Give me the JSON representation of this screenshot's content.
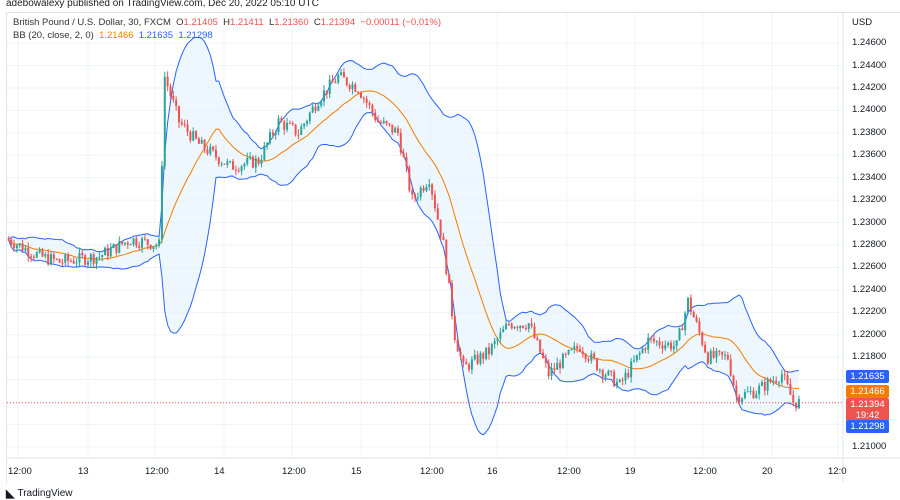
{
  "publisher": "adebowalexy published on TradingView.com, Dec 20, 2022 05:10 UTC",
  "symbol": {
    "name": "British Pound / U.S. Dollar, 30, FXCM",
    "o_label": "O",
    "o": "1.21405",
    "h_label": "H",
    "h": "1.21411",
    "l_label": "L",
    "l": "1.21360",
    "c_label": "C",
    "c": "1.21394",
    "change": "−0.00011 (−0.01%)"
  },
  "indicator": {
    "name": "BB (20, close, 2, 0)",
    "basis": "1.21466",
    "upper": "1.21635",
    "lower": "1.21298"
  },
  "currency": "USD",
  "price_axis": [
    "1.24600",
    "1.24400",
    "1.24200",
    "1.24000",
    "1.23800",
    "1.23600",
    "1.23400",
    "1.23200",
    "1.23000",
    "1.22800",
    "1.22600",
    "1.22400",
    "1.22200",
    "1.22000",
    "1.21800",
    "1.21000"
  ],
  "time_axis": [
    "12:00",
    "13",
    "12:00",
    "14",
    "12:00",
    "15",
    "12:00",
    "16",
    "12:00",
    "19",
    "12:00",
    "20",
    "12:0"
  ],
  "tags": {
    "upper": "1.21635",
    "basis": "1.21466",
    "last": "1.21394",
    "countdown": "19:42",
    "lower": "1.21298"
  },
  "footer": {
    "brand": "TradingView"
  },
  "colors": {
    "up": "#26a69a",
    "down": "#ef5350",
    "basis": "#f57c00",
    "band": "#2962ff",
    "fill": "#e3f2fd"
  },
  "chart_data": {
    "type": "candlestick",
    "interval": "30",
    "days": [
      "12",
      "13",
      "14",
      "15",
      "16",
      "19",
      "20"
    ],
    "approx_closes": [
      [
        "12",
        "10:00",
        1.2285
      ],
      [
        "12",
        "15:30",
        1.227
      ],
      [
        "12",
        "19:00",
        1.2265
      ],
      [
        "13",
        "02:00",
        1.227
      ],
      [
        "13",
        "07:30",
        1.2285
      ],
      [
        "13",
        "12:30",
        1.228
      ],
      [
        "13",
        "13:30",
        1.243
      ],
      [
        "13",
        "16:00",
        1.239
      ],
      [
        "13",
        "19:30",
        1.237
      ],
      [
        "14",
        "01:00",
        1.235
      ],
      [
        "14",
        "06:00",
        1.2355
      ],
      [
        "14",
        "09:30",
        1.239
      ],
      [
        "14",
        "13:00",
        1.238
      ],
      [
        "14",
        "16:30",
        1.241
      ],
      [
        "14",
        "20:00",
        1.243
      ],
      [
        "14",
        "23:30",
        1.242
      ],
      [
        "15",
        "03:00",
        1.239
      ],
      [
        "15",
        "06:30",
        1.238
      ],
      [
        "15",
        "09:00",
        1.232
      ],
      [
        "15",
        "12:00",
        1.234
      ],
      [
        "15",
        "14:30",
        1.228
      ],
      [
        "15",
        "16:30",
        1.22
      ],
      [
        "15",
        "18:00",
        1.217
      ],
      [
        "15",
        "22:30",
        1.2185
      ],
      [
        "16",
        "02:00",
        1.221
      ],
      [
        "16",
        "05:30",
        1.221
      ],
      [
        "16",
        "09:00",
        1.2165
      ],
      [
        "16",
        "11:00",
        1.2175
      ],
      [
        "16",
        "14:30",
        1.219
      ],
      [
        "16",
        "18:00",
        1.217
      ],
      [
        "16",
        "21:30",
        1.2155
      ],
      [
        "19",
        "02:30",
        1.2195
      ],
      [
        "19",
        "07:30",
        1.219
      ],
      [
        "19",
        "09:30",
        1.223
      ],
      [
        "19",
        "13:00",
        1.218
      ],
      [
        "19",
        "16:30",
        1.218
      ],
      [
        "19",
        "18:00",
        1.2145
      ],
      [
        "19",
        "21:30",
        1.215
      ],
      [
        "20",
        "02:00",
        1.2165
      ],
      [
        "20",
        "04:00",
        1.214
      ],
      [
        "20",
        "05:00",
        1.21394
      ]
    ],
    "ylim": [
      1.2095,
      1.2465
    ],
    "grid": true
  }
}
